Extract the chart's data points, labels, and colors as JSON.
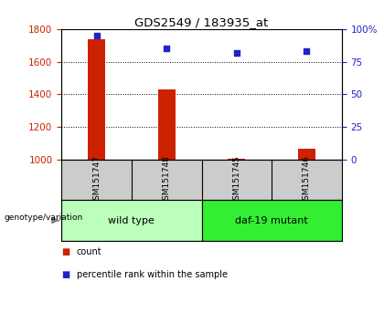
{
  "title": "GDS2549 / 183935_at",
  "samples": [
    "GSM151747",
    "GSM151748",
    "GSM151745",
    "GSM151746"
  ],
  "counts": [
    1740,
    1430,
    1007,
    1065
  ],
  "percentiles": [
    95,
    85,
    82,
    83
  ],
  "ylim_left": [
    1000,
    1800
  ],
  "ylim_right": [
    0,
    100
  ],
  "yticks_left": [
    1000,
    1200,
    1400,
    1600,
    1800
  ],
  "yticks_right": [
    0,
    25,
    50,
    75,
    100
  ],
  "ytick_labels_right": [
    "0",
    "25",
    "50",
    "75",
    "100%"
  ],
  "bar_color": "#cc2200",
  "dot_color": "#2222cc",
  "bar_width": 0.25,
  "groups": [
    {
      "label": "wild type",
      "indices": [
        0,
        1
      ],
      "color": "#bbffbb"
    },
    {
      "label": "daf-19 mutant",
      "indices": [
        2,
        3
      ],
      "color": "#33ee33"
    }
  ],
  "group_label_prefix": "genotype/variation",
  "legend_count_label": "count",
  "legend_pct_label": "percentile rank within the sample",
  "background_color": "#ffffff",
  "plot_bg_color": "#ffffff",
  "grid_color": "#000000",
  "tick_color_left": "#cc2200",
  "tick_color_right": "#2222cc",
  "label_area_color": "#cccccc"
}
